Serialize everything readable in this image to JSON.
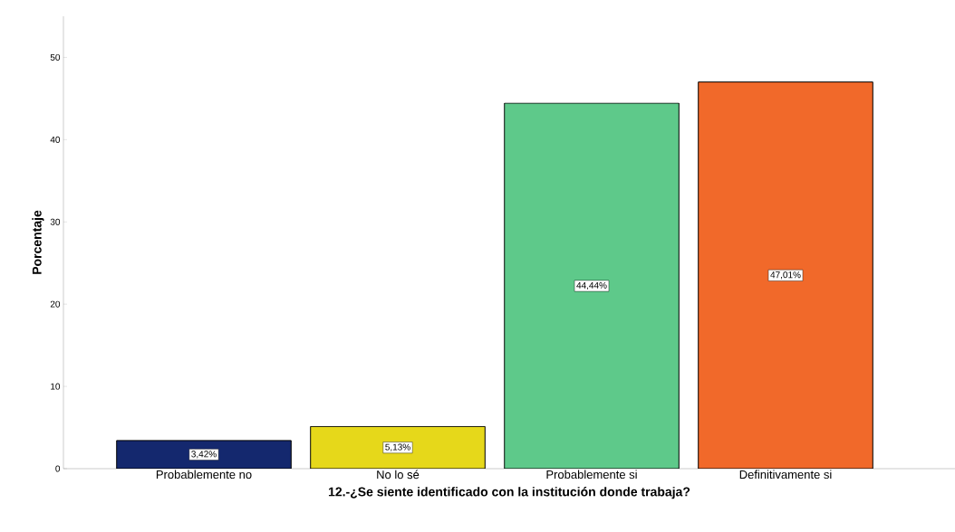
{
  "chart_data": {
    "type": "bar",
    "xlabel": "12.-¿Se siente identificado con la institución donde trabaja?",
    "ylabel": "Porcentaje",
    "categories": [
      "Probablemente no",
      "No lo sé",
      "Probablemente si",
      "Definitivamente si"
    ],
    "values": [
      3.42,
      5.13,
      44.44,
      47.01
    ],
    "value_labels": [
      "3,42%",
      "5,13%",
      "44,44%",
      "47,01%"
    ],
    "colors": [
      "#14286e",
      "#e6d81a",
      "#5ec98a",
      "#f1692a"
    ],
    "ylim": [
      0,
      55
    ],
    "yticks": [
      0,
      10,
      20,
      30,
      40,
      50
    ],
    "grid": false
  }
}
